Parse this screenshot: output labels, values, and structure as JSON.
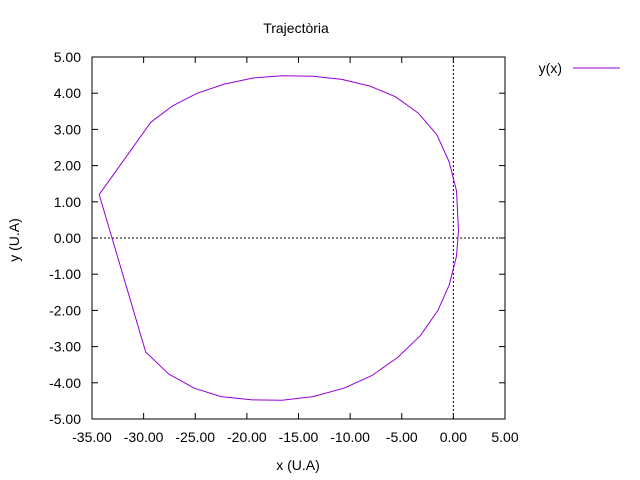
{
  "chart_data": {
    "type": "line",
    "title": "Trajectòria",
    "xlabel": "x (U.A)",
    "ylabel": "y (U.A)",
    "xlim": [
      -35,
      5
    ],
    "ylim": [
      -5,
      5
    ],
    "x_ticks": [
      "-35.00",
      "-30.00",
      "-25.00",
      "-20.00",
      "-15.00",
      "-10.00",
      "-5.00",
      "0.00",
      "5.00"
    ],
    "y_ticks": [
      "5.00",
      "4.00",
      "3.00",
      "2.00",
      "1.00",
      "0.00",
      "-1.00",
      "-2.00",
      "-3.00",
      "-4.00",
      "-5.00"
    ],
    "zero_axes": true,
    "grid": false,
    "legend_position": "outside-top-right",
    "colors": {
      "series": "#9400d3"
    },
    "series": [
      {
        "name": "y(x)",
        "x": [
          0.5,
          0.3,
          -0.4,
          -1.6,
          -3.4,
          -5.6,
          -8.1,
          -10.8,
          -13.6,
          -16.6,
          -19.4,
          -22.2,
          -24.8,
          -27.2,
          -29.3,
          -34.3,
          -29.8,
          -27.6,
          -25.1,
          -22.5,
          -19.6,
          -16.6,
          -13.6,
          -10.6,
          -7.9,
          -5.4,
          -3.2,
          -1.5,
          -0.4,
          0.3,
          0.5
        ],
        "y": [
          0.2,
          1.3,
          2.1,
          2.85,
          3.45,
          3.9,
          4.2,
          4.38,
          4.47,
          4.48,
          4.42,
          4.25,
          4.0,
          3.65,
          3.2,
          1.2,
          -3.15,
          -3.75,
          -4.15,
          -4.38,
          -4.47,
          -4.48,
          -4.38,
          -4.15,
          -3.8,
          -3.3,
          -2.7,
          -2.0,
          -1.3,
          -0.5,
          0.2
        ]
      }
    ]
  }
}
